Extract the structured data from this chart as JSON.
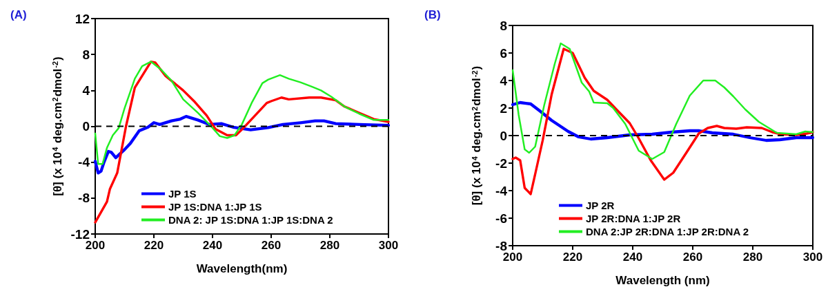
{
  "chart_data": [
    {
      "type": "line",
      "title": "(A)",
      "xlabel": "Wavelength(nm)",
      "ylabel": "[θ] (x 10$^{4}$ deg.cm$^{2}$dmol$^{-2}$)",
      "xlim": [
        200,
        300
      ],
      "xticks": [
        200,
        220,
        240,
        260,
        280,
        300
      ],
      "ylim": [
        -12,
        12
      ],
      "yticks": [
        -12,
        -8,
        -4,
        0,
        4,
        8,
        12
      ],
      "grid": false,
      "legend": "bottom left",
      "marker": "none",
      "line_style": "solid",
      "ref_lines": [
        {
          "axis": "y",
          "value": 0,
          "line_style": "dashed",
          "color": "#000000"
        }
      ],
      "series": [
        {
          "name": "JP 1S",
          "color": "#0000ff",
          "x": [
            200,
            201,
            202,
            203,
            204.5,
            205.5,
            207,
            210,
            212,
            215,
            218,
            220,
            222,
            226,
            229,
            231,
            235,
            239,
            243,
            247,
            253,
            259,
            264,
            270,
            275,
            278,
            282,
            290,
            300
          ],
          "values": [
            -3.9,
            -5.2,
            -5.0,
            -4.0,
            -2.8,
            -2.9,
            -3.5,
            -2.6,
            -1.9,
            -0.5,
            -0.1,
            0.4,
            0.2,
            0.6,
            0.8,
            1.1,
            0.7,
            0.2,
            0.3,
            -0.1,
            -0.4,
            -0.15,
            0.2,
            0.4,
            0.6,
            0.6,
            0.3,
            0.2,
            0.1
          ]
        },
        {
          "name": "JP 1S:DNA 1:JP 1S",
          "color": "#ff0000",
          "x": [
            200,
            204,
            205,
            207.5,
            210.5,
            213.5,
            219,
            220.5,
            224,
            230,
            234,
            238,
            241,
            245,
            248,
            250.5,
            254.5,
            258.5,
            260,
            263.5,
            266,
            273,
            277,
            282,
            285,
            290,
            295,
            300
          ],
          "values": [
            -10.7,
            -8.4,
            -7.0,
            -5.2,
            0,
            4.3,
            7.2,
            7.1,
            5.6,
            4.0,
            2.7,
            1.2,
            -0.3,
            -1.0,
            -1.0,
            -0.2,
            1.2,
            2.6,
            2.8,
            3.2,
            3.0,
            3.2,
            3.2,
            2.9,
            2.2,
            1.5,
            0.8,
            0.5
          ]
        },
        {
          "name": "DNA 2: JP 1S:DNA 1:JP 1S:DNA 2",
          "color": "#22ee22",
          "x": [
            200,
            201,
            202.5,
            204,
            206,
            208,
            210,
            213.5,
            216,
            219,
            222.5,
            226,
            230,
            235,
            239.5,
            242.5,
            245,
            247.5,
            250,
            253.5,
            257,
            259,
            263,
            266,
            270,
            274,
            277,
            280.5,
            285,
            290,
            295,
            300
          ],
          "values": [
            -0.8,
            -4.2,
            -4.2,
            -2.4,
            -1.0,
            -0.2,
            2.0,
            5.3,
            6.7,
            7.2,
            6.3,
            5.1,
            3.0,
            1.5,
            0,
            -1.1,
            -1.3,
            -1.0,
            0.2,
            2.7,
            4.8,
            5.2,
            5.7,
            5.3,
            4.9,
            4.4,
            4.0,
            3.3,
            2.2,
            1.4,
            0.7,
            0.7
          ]
        }
      ]
    },
    {
      "type": "line",
      "title": "(B)",
      "xlabel": "Wavelength (nm)",
      "ylabel": "[θ] (x 10$^{4}$ deg.cm$^{2}$dmol$^{-2}$)",
      "xlim": [
        200,
        300
      ],
      "xticks": [
        200,
        220,
        240,
        260,
        280,
        300
      ],
      "ylim": [
        -8,
        8
      ],
      "yticks": [
        -8,
        -6,
        -4,
        -2,
        0,
        2,
        4,
        6,
        8
      ],
      "grid": false,
      "legend": "bottom left",
      "marker": "none",
      "line_style": "solid",
      "ref_lines": [
        {
          "axis": "y",
          "value": 0,
          "line_style": "dashed",
          "color": "#000000"
        }
      ],
      "series": [
        {
          "name": "JP 2R",
          "color": "#0000ff",
          "x": [
            200,
            202.5,
            206,
            209,
            213,
            218.5,
            222,
            226,
            231.5,
            239,
            246.5,
            253,
            259,
            262,
            266.5,
            273.5,
            279,
            284.5,
            289,
            294.5,
            300
          ],
          "values": [
            2.25,
            2.4,
            2.3,
            1.8,
            1.1,
            0.3,
            -0.1,
            -0.25,
            -0.15,
            0.05,
            0.1,
            0.25,
            0.35,
            0.35,
            0.2,
            0.1,
            -0.15,
            -0.35,
            -0.3,
            -0.15,
            -0.15
          ]
        },
        {
          "name": "JP 2R:DNA 1:JP 2R",
          "color": "#ff0000",
          "x": [
            200,
            201,
            202.5,
            204,
            206,
            207.5,
            210,
            213,
            217,
            220,
            224,
            227,
            231.5,
            235,
            239,
            242,
            246,
            250.5,
            253.5,
            258,
            262,
            265,
            268,
            270.5,
            274.5,
            278,
            283,
            286.5,
            289.5,
            294.5,
            298,
            300
          ],
          "values": [
            -1.7,
            -1.6,
            -1.8,
            -3.8,
            -4.25,
            -2.8,
            -0.35,
            3.0,
            6.3,
            6.0,
            4.2,
            3.25,
            2.6,
            1.8,
            0.9,
            -0.2,
            -1.8,
            -3.2,
            -2.7,
            -1.2,
            0.15,
            0.55,
            0.7,
            0.55,
            0.5,
            0.6,
            0.55,
            0.25,
            0.1,
            0.05,
            0.15,
            0.25
          ]
        },
        {
          "name": "DNA 2:JP 2R:DNA 1:JP 2R:DNA 2",
          "color": "#22ee22",
          "x": [
            200,
            202,
            204,
            205.5,
            207.5,
            210.5,
            214,
            216,
            219,
            223,
            225.5,
            227,
            231.5,
            233.5,
            237.5,
            242,
            246.5,
            250.5,
            254.5,
            259,
            263.5,
            267.5,
            270.5,
            273.5,
            277.5,
            282,
            285,
            288,
            294.5,
            297.5,
            300
          ],
          "values": [
            4.75,
            1.5,
            -1.0,
            -1.25,
            -0.8,
            2.2,
            5.2,
            6.7,
            6.3,
            3.85,
            3.2,
            2.4,
            2.35,
            2.0,
            0.85,
            -1.1,
            -1.7,
            -1.2,
            0.85,
            2.9,
            4.0,
            4.0,
            3.5,
            2.85,
            1.9,
            1.0,
            0.6,
            0.2,
            0.1,
            0.3,
            0.25
          ]
        }
      ]
    }
  ]
}
